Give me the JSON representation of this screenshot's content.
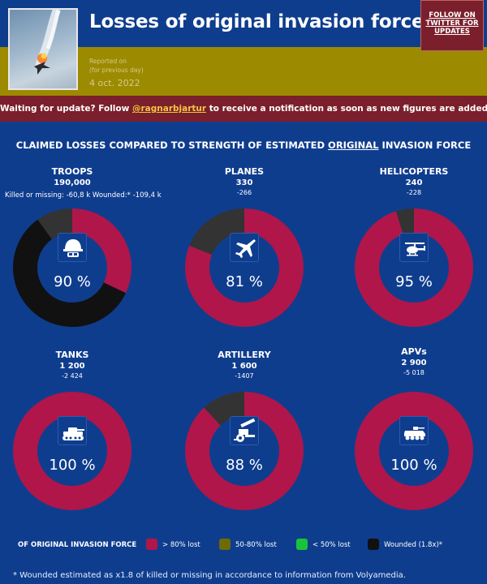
{
  "header": {
    "title": "Losses of original invasion forces",
    "reported_label": "Reported on",
    "reported_sub": "(for previous day)",
    "report_date": "4 oct. 2022",
    "follow_button": "FOLLOW ON TWITTER FOR UPDATES"
  },
  "banner": {
    "text_before": "Waiting for update? Follow ",
    "handle": "@ragnarbjartur",
    "text_after": " to receive a notification as soon as new figures are added."
  },
  "section": {
    "title_before": "CLAIMED LOSSES COMPARED TO STRENGTH OF ESTIMATED ",
    "title_underlined": "ORIGINAL",
    "title_after": " INVASION FORCE"
  },
  "categories": [
    {
      "name": "TROOPS",
      "strength": "190,000",
      "lost": "",
      "percent_label": "90 %",
      "icon": "soldier-helmet-icon",
      "segments": [
        {
          "value": 0.32,
          "color": "#b0164a"
        },
        {
          "value": 0.58,
          "color": "#111111"
        },
        {
          "value": 0.1,
          "color": "#333333"
        }
      ]
    },
    {
      "name": "PLANES",
      "strength": "330",
      "lost": "-266",
      "percent_label": "81 %",
      "icon": "fighter-jet-icon",
      "segments": [
        {
          "value": 0.81,
          "color": "#b0164a"
        },
        {
          "value": 0.19,
          "color": "#333333"
        }
      ]
    },
    {
      "name": "HELICOPTERS",
      "strength": "240",
      "lost": "-228",
      "percent_label": "95 %",
      "icon": "helicopter-icon",
      "segments": [
        {
          "value": 0.95,
          "color": "#b0164a"
        },
        {
          "value": 0.05,
          "color": "#333333"
        }
      ]
    },
    {
      "name": "TANKS",
      "strength": "1 200",
      "lost": "-2 424",
      "percent_label": "100 %",
      "icon": "tank-icon",
      "segments": [
        {
          "value": 1.0,
          "color": "#b0164a"
        }
      ]
    },
    {
      "name": "ARTILLERY",
      "strength": "1 600",
      "lost": "-1407",
      "percent_label": "88 %",
      "icon": "artillery-icon",
      "segments": [
        {
          "value": 0.88,
          "color": "#b0164a"
        },
        {
          "value": 0.12,
          "color": "#333333"
        }
      ]
    },
    {
      "name": "APVs",
      "strength": "2 900",
      "lost": "-5 018",
      "percent_label": "100 %",
      "icon": "apv-icon",
      "segments": [
        {
          "value": 1.0,
          "color": "#b0164a"
        }
      ]
    }
  ],
  "troop_note": "Killed or missing: -60,8 k Wounded:* -109,4 k",
  "legend": {
    "title": "OF ORIGINAL INVASION FORCE",
    "items": [
      {
        "label": "> 80% lost",
        "color": "#b0164a"
      },
      {
        "label": "50-80% lost",
        "color": "#6e6b00"
      },
      {
        "label": "< 50% lost",
        "color": "#19c43b"
      },
      {
        "label": "Wounded (1.8x)*",
        "color": "#111111"
      }
    ]
  },
  "footnote": "* Wounded estimated as x1.8 of killed or missing in accordance to information from Volyamedia."
}
